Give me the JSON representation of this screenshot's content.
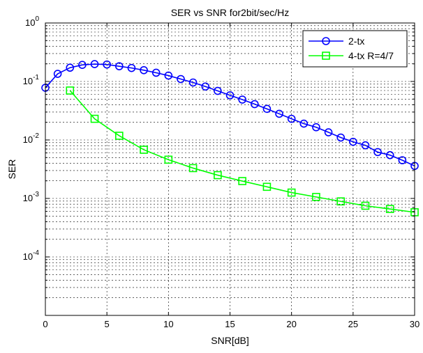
{
  "chart_data": {
    "type": "line",
    "title": "SER vs SNR for2bit/sec/Hz",
    "xlabel": "SNR[dB]",
    "ylabel": "SER",
    "xlim": [
      0,
      30
    ],
    "ylim": [
      1e-05,
      1
    ],
    "yscale": "log",
    "grid": true,
    "legend_position": "top-right",
    "x_ticks": [
      0,
      5,
      10,
      15,
      20,
      25,
      30
    ],
    "y_ticks": [
      {
        "base": "10",
        "exp": "-4",
        "value": 0.0001
      },
      {
        "base": "10",
        "exp": "-3",
        "value": 0.001
      },
      {
        "base": "10",
        "exp": "-2",
        "value": 0.01
      },
      {
        "base": "10",
        "exp": "-1",
        "value": 0.1
      },
      {
        "base": "10",
        "exp": "0",
        "value": 1
      }
    ],
    "series": [
      {
        "name": "2-tx",
        "color": "#0000ff",
        "marker": "circle",
        "x": [
          0,
          1,
          2,
          3,
          4,
          5,
          6,
          7,
          8,
          9,
          10,
          11,
          12,
          13,
          14,
          15,
          16,
          17,
          18,
          19,
          20,
          21,
          22,
          23,
          24,
          25,
          26,
          27,
          28,
          29,
          30
        ],
        "y": [
          0.078,
          0.135,
          0.172,
          0.192,
          0.198,
          0.195,
          0.182,
          0.17,
          0.156,
          0.141,
          0.126,
          0.11,
          0.096,
          0.082,
          0.069,
          0.058,
          0.049,
          0.041,
          0.034,
          0.028,
          0.023,
          0.019,
          0.0165,
          0.0135,
          0.011,
          0.0093,
          0.0081,
          0.0062,
          0.0055,
          0.0045,
          0.0036
        ]
      },
      {
        "name": "4-tx R=4/7",
        "color": "#00ff00",
        "marker": "square",
        "x": [
          2,
          4,
          6,
          8,
          10,
          12,
          14,
          16,
          18,
          20,
          22,
          24,
          26,
          28,
          30
        ],
        "y": [
          0.07,
          0.023,
          0.0118,
          0.0068,
          0.0046,
          0.0033,
          0.0025,
          0.00198,
          0.00158,
          0.00126,
          0.00106,
          0.00089,
          0.00075,
          0.00066,
          0.00058
        ]
      }
    ]
  }
}
